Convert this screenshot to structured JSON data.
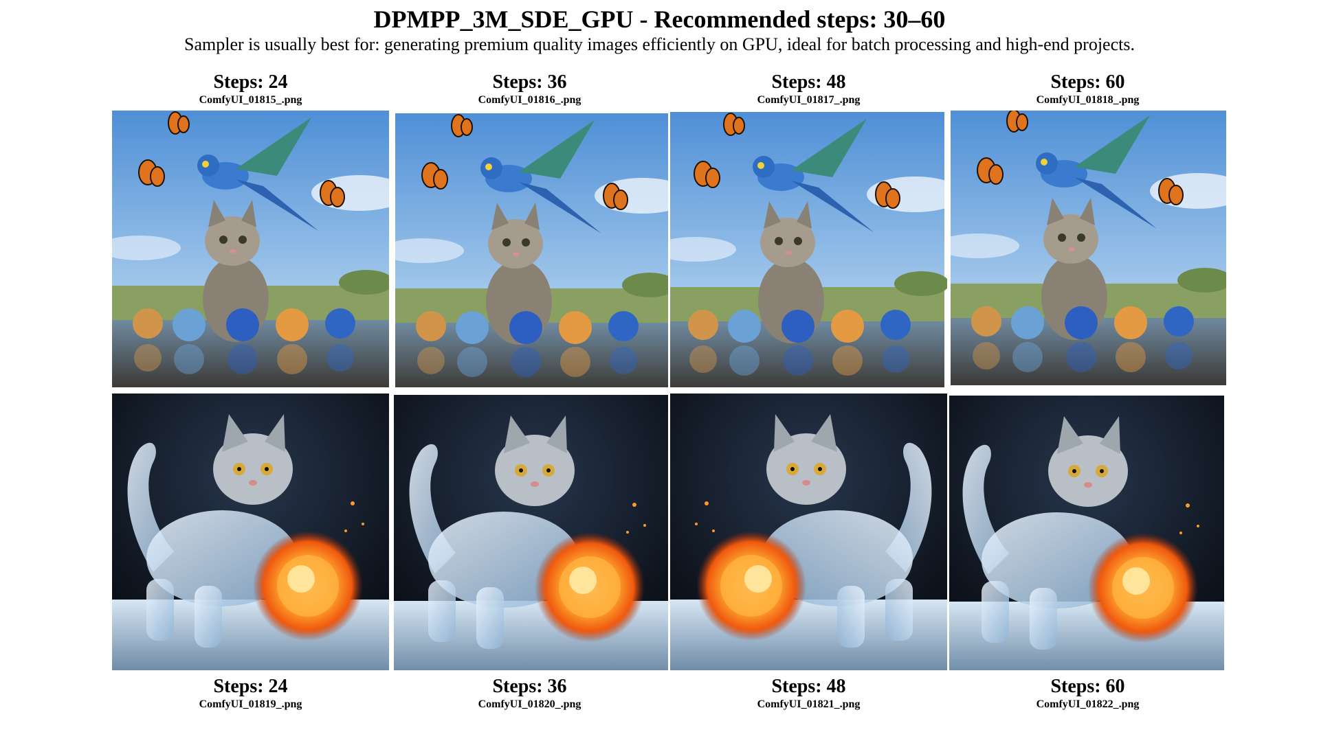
{
  "header": {
    "title": "DPMPP_3M_SDE_GPU - Recommended steps: 30–60",
    "subtitle": "Sampler is usually best for: generating premium quality images efficiently on GPU, ideal for batch processing and high-end projects."
  },
  "row1": [
    {
      "steps": "Steps: 24",
      "file": "ComfyUI_01815_.png"
    },
    {
      "steps": "Steps: 36",
      "file": "ComfyUI_01816_.png"
    },
    {
      "steps": "Steps: 48",
      "file": "ComfyUI_01817_.png"
    },
    {
      "steps": "Steps: 60",
      "file": "ComfyUI_01818_.png"
    }
  ],
  "row2": [
    {
      "steps": "Steps: 24",
      "file": "ComfyUI_01819_.png"
    },
    {
      "steps": "Steps: 36",
      "file": "ComfyUI_01820_.png"
    },
    {
      "steps": "Steps: 48",
      "file": "ComfyUI_01821_.png"
    },
    {
      "steps": "Steps: 60",
      "file": "ComfyUI_01822_.png"
    }
  ],
  "colors": {
    "sky_top": "#4f8fd6",
    "sky_bottom": "#c9e2f4",
    "parrot": "#3a7bd0",
    "ice_bg": "#0d1420",
    "fire": "#ff8a1c"
  }
}
